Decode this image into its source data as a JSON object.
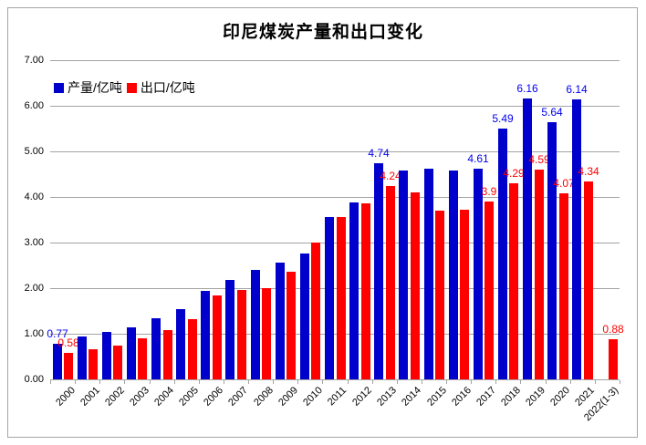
{
  "chart_data": {
    "type": "bar",
    "title": "印尼煤炭产量和出口变化",
    "categories": [
      "2000",
      "2001",
      "2002",
      "2003",
      "2004",
      "2005",
      "2006",
      "2007",
      "2008",
      "2009",
      "2010",
      "2011",
      "2012",
      "2013",
      "2014",
      "2015",
      "2016",
      "2017",
      "2018",
      "2019",
      "2020",
      "2021",
      "2022(1-3)"
    ],
    "series": [
      {
        "name": "产量/亿吨",
        "key": "production",
        "color": "#0000cc",
        "label_color": "#0000f0",
        "values": [
          0.77,
          0.93,
          1.04,
          1.14,
          1.33,
          1.54,
          1.93,
          2.17,
          2.4,
          2.56,
          2.75,
          3.55,
          3.87,
          4.74,
          4.58,
          4.62,
          4.57,
          4.61,
          5.49,
          6.16,
          5.64,
          6.14,
          null
        ],
        "labels": [
          "0.77",
          null,
          null,
          null,
          null,
          null,
          null,
          null,
          null,
          null,
          null,
          null,
          null,
          "4.74",
          null,
          null,
          null,
          "4.61",
          "5.49",
          "6.16",
          "5.64",
          "6.14",
          null
        ]
      },
      {
        "name": "出口/亿吨",
        "key": "export",
        "color": "#ff0000",
        "label_color": "#ff0000",
        "values": [
          0.58,
          0.66,
          0.74,
          0.9,
          1.07,
          1.31,
          1.84,
          1.95,
          2.0,
          2.35,
          3.0,
          3.55,
          3.85,
          4.24,
          4.09,
          3.7,
          3.72,
          3.9,
          4.29,
          4.59,
          4.07,
          4.34,
          0.88
        ],
        "labels": [
          "0.58",
          null,
          null,
          null,
          null,
          null,
          null,
          null,
          null,
          null,
          null,
          null,
          null,
          "4.24",
          null,
          null,
          null,
          "3.9",
          "4.29",
          "4.59",
          "4.07",
          "4.34",
          "0.88"
        ]
      }
    ],
    "ylim": [
      0,
      7
    ],
    "ytick_labels": [
      "0.00",
      "1.00",
      "2.00",
      "3.00",
      "4.00",
      "5.00",
      "6.00",
      "7.00"
    ],
    "grid": true,
    "legend_position": "top-left-inside"
  }
}
